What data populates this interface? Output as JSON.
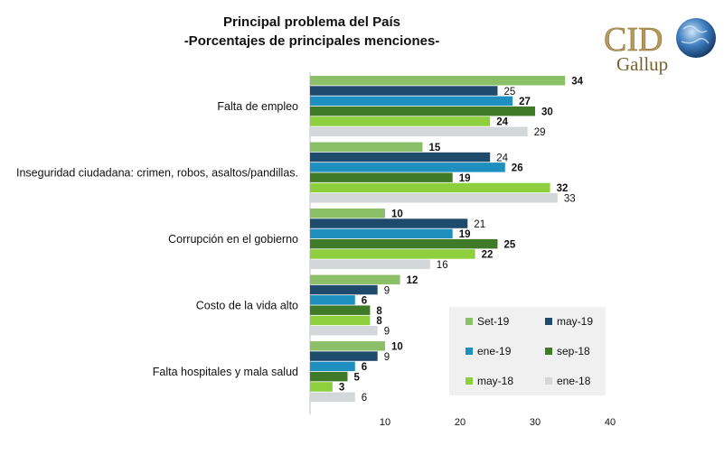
{
  "chart_data": {
    "type": "bar",
    "orientation": "horizontal",
    "title": "Principal problema del País",
    "subtitle": "-Porcentajes de principales menciones-",
    "categories": [
      "Falta de empleo",
      "Inseguridad ciudadana: crimen, robos, asaltos/pandillas.",
      "Corrupción en el gobierno",
      "Costo de la vida alto",
      "Falta hospitales y mala salud"
    ],
    "series": [
      {
        "name": "Set-19",
        "color": "#8cc068",
        "bold_labels": true,
        "values": [
          34,
          15,
          10,
          12,
          10
        ]
      },
      {
        "name": "may-19",
        "color": "#1e4a6c",
        "bold_labels": false,
        "values": [
          25,
          24,
          21,
          9,
          9
        ]
      },
      {
        "name": "ene-19",
        "color": "#1f8fc0",
        "bold_labels": true,
        "values": [
          27,
          26,
          19,
          6,
          6
        ]
      },
      {
        "name": "sep-18",
        "color": "#3f7a28",
        "bold_labels": true,
        "values": [
          30,
          19,
          25,
          8,
          5
        ]
      },
      {
        "name": "may-18",
        "color": "#8ecf3e",
        "bold_labels": true,
        "values": [
          24,
          32,
          22,
          8,
          3
        ]
      },
      {
        "name": "ene-18",
        "color": "#d4d7d9",
        "bold_labels": false,
        "values": [
          29,
          33,
          16,
          9,
          6
        ]
      }
    ],
    "x_ticks": [
      10,
      20,
      30,
      40
    ],
    "xlim": [
      0,
      40
    ],
    "legend_position": "bottom-right",
    "grid": false
  },
  "logo": {
    "line1": "CID",
    "line2": "Gallup"
  }
}
